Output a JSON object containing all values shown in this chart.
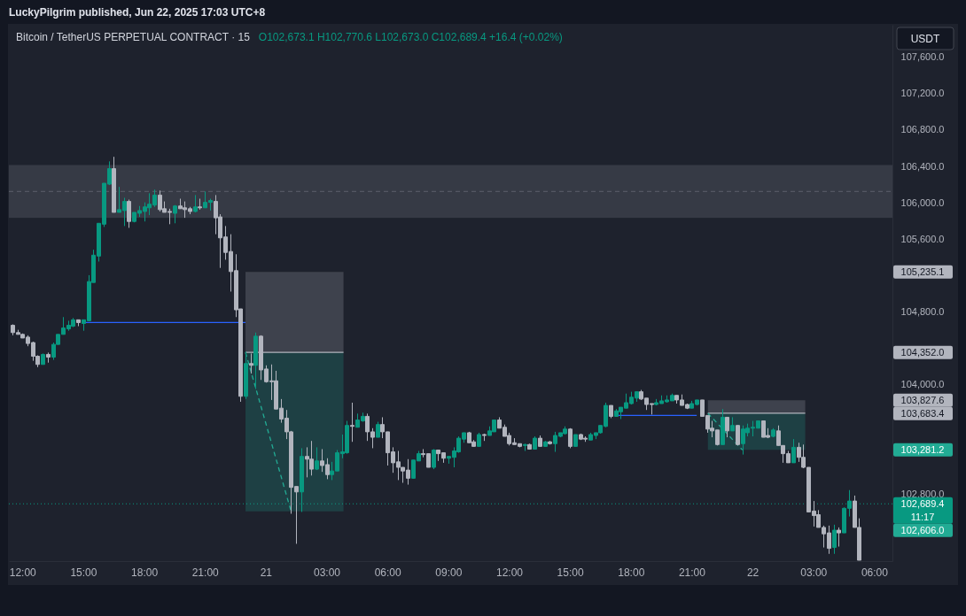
{
  "chart_data": {
    "type": "candlestick",
    "title": "Bitcoin / TetherUS PERPETUAL CONTRACT · 15",
    "subtitle": "O102,673.1 H102,770.6 L102,673.0 C102,689.4 +16.4 (+0.02%)",
    "ylabel": "USDT",
    "annotations": [
      "LuckyPilgrim published, Jun 22, 2025 17:03 UTC+8",
      "11:17",
      "105,235.1",
      "104,352.0",
      "103,827.6",
      "103,683.4",
      "103,281.2",
      "102,606.0"
    ],
    "xlim": [
      "2025-06-20T11:20",
      "2025-06-22T06:54"
    ],
    "ylim": [
      102060,
      107950
    ],
    "xticks": [
      {
        "value": "2025-06-20T12:00",
        "label": "12:00"
      },
      {
        "value": "2025-06-20T15:00",
        "label": "15:00"
      },
      {
        "value": "2025-06-20T18:00",
        "label": "18:00"
      },
      {
        "value": "2025-06-20T21:00",
        "label": "21:00"
      },
      {
        "value": "2025-06-21T00:00",
        "label": "21"
      },
      {
        "value": "2025-06-21T03:00",
        "label": "03:00"
      },
      {
        "value": "2025-06-21T06:00",
        "label": "06:00"
      },
      {
        "value": "2025-06-21T09:00",
        "label": "09:00"
      },
      {
        "value": "2025-06-21T12:00",
        "label": "12:00"
      },
      {
        "value": "2025-06-21T15:00",
        "label": "15:00"
      },
      {
        "value": "2025-06-21T18:00",
        "label": "18:00"
      },
      {
        "value": "2025-06-21T21:00",
        "label": "21:00"
      },
      {
        "value": "2025-06-22T00:00",
        "label": "22"
      },
      {
        "value": "2025-06-22T03:00",
        "label": "03:00"
      },
      {
        "value": "2025-06-22T06:00",
        "label": "06:00"
      }
    ],
    "yticks": [
      {
        "value": 102800,
        "label": "102,800.0"
      },
      {
        "value": 104000,
        "label": "104,000.0"
      },
      {
        "value": 104800,
        "label": "104,800.0"
      },
      {
        "value": 105600,
        "label": "105,600.0"
      },
      {
        "value": 106000,
        "label": "106,000.0"
      },
      {
        "value": 106400,
        "label": "106,400.0"
      },
      {
        "value": 106800,
        "label": "106,800.0"
      },
      {
        "value": 107200,
        "label": "107,200.0"
      },
      {
        "value": 107600,
        "label": "107,600.0"
      }
    ],
    "bands": [
      {
        "axis": "y",
        "from": 105830,
        "to": 106410,
        "color": "#363a45"
      }
    ],
    "ref_lines": [
      {
        "axis": "y",
        "value": 106120,
        "color": "#5d606b",
        "line_style": "dashed"
      },
      {
        "axis": "y",
        "value": 102689.4,
        "label": "102,689.4",
        "color": "#089981",
        "line_style": "dotted"
      }
    ],
    "x": [
      "2025-06-20T11:30",
      "2025-06-20T11:45",
      "2025-06-20T12:00",
      "2025-06-20T12:15",
      "2025-06-20T12:30",
      "2025-06-20T12:45",
      "2025-06-20T13:00",
      "2025-06-20T13:15",
      "2025-06-20T13:30",
      "2025-06-20T13:45",
      "2025-06-20T14:00",
      "2025-06-20T14:15",
      "2025-06-20T14:30",
      "2025-06-20T14:45",
      "2025-06-20T15:00",
      "2025-06-20T15:15",
      "2025-06-20T15:30",
      "2025-06-20T15:45",
      "2025-06-20T16:00",
      "2025-06-20T16:15",
      "2025-06-20T16:30",
      "2025-06-20T16:45",
      "2025-06-20T17:00",
      "2025-06-20T17:15",
      "2025-06-20T17:30",
      "2025-06-20T17:45",
      "2025-06-20T18:00",
      "2025-06-20T18:15",
      "2025-06-20T18:30",
      "2025-06-20T18:45",
      "2025-06-20T19:00",
      "2025-06-20T19:15",
      "2025-06-20T19:30",
      "2025-06-20T19:45",
      "2025-06-20T20:00",
      "2025-06-20T20:15",
      "2025-06-20T20:30",
      "2025-06-20T20:45",
      "2025-06-20T21:00",
      "2025-06-20T21:15",
      "2025-06-20T21:30",
      "2025-06-20T21:45",
      "2025-06-20T22:00",
      "2025-06-20T22:15",
      "2025-06-20T22:30",
      "2025-06-20T22:45",
      "2025-06-20T23:00",
      "2025-06-20T23:15",
      "2025-06-20T23:30",
      "2025-06-20T23:45",
      "2025-06-21T00:00",
      "2025-06-21T00:15",
      "2025-06-21T00:30",
      "2025-06-21T00:45",
      "2025-06-21T01:00",
      "2025-06-21T01:15",
      "2025-06-21T01:30",
      "2025-06-21T01:45",
      "2025-06-21T02:00",
      "2025-06-21T02:15",
      "2025-06-21T02:30",
      "2025-06-21T02:45",
      "2025-06-21T03:00",
      "2025-06-21T03:15",
      "2025-06-21T03:30",
      "2025-06-21T03:45",
      "2025-06-21T04:00",
      "2025-06-21T04:15",
      "2025-06-21T04:30",
      "2025-06-21T04:45",
      "2025-06-21T05:00",
      "2025-06-21T05:15",
      "2025-06-21T05:30",
      "2025-06-21T05:45",
      "2025-06-21T06:00",
      "2025-06-21T06:15",
      "2025-06-21T06:30",
      "2025-06-21T06:45",
      "2025-06-21T07:00",
      "2025-06-21T07:15",
      "2025-06-21T07:30",
      "2025-06-21T07:45",
      "2025-06-21T08:00",
      "2025-06-21T08:15",
      "2025-06-21T08:30",
      "2025-06-21T08:45",
      "2025-06-21T09:00",
      "2025-06-21T09:15",
      "2025-06-21T09:30",
      "2025-06-21T09:45",
      "2025-06-21T10:00",
      "2025-06-21T10:15",
      "2025-06-21T10:30",
      "2025-06-21T10:45",
      "2025-06-21T11:00",
      "2025-06-21T11:15",
      "2025-06-21T11:30",
      "2025-06-21T11:45",
      "2025-06-21T12:00",
      "2025-06-21T12:15",
      "2025-06-21T12:30",
      "2025-06-21T12:45",
      "2025-06-21T13:00",
      "2025-06-21T13:15",
      "2025-06-21T13:30",
      "2025-06-21T13:45",
      "2025-06-21T14:00",
      "2025-06-21T14:15",
      "2025-06-21T14:30",
      "2025-06-21T14:45",
      "2025-06-21T15:00",
      "2025-06-21T15:15",
      "2025-06-21T15:30",
      "2025-06-21T15:45",
      "2025-06-21T16:00",
      "2025-06-21T16:15",
      "2025-06-21T16:30",
      "2025-06-21T16:45",
      "2025-06-21T17:00",
      "2025-06-21T17:15",
      "2025-06-21T17:30",
      "2025-06-21T17:45",
      "2025-06-21T18:00",
      "2025-06-21T18:15",
      "2025-06-21T18:30",
      "2025-06-21T18:45",
      "2025-06-21T19:00",
      "2025-06-21T19:15",
      "2025-06-21T19:30",
      "2025-06-21T19:45",
      "2025-06-21T20:00",
      "2025-06-21T20:15",
      "2025-06-21T20:30",
      "2025-06-21T20:45",
      "2025-06-21T21:00",
      "2025-06-21T21:15",
      "2025-06-21T21:30",
      "2025-06-21T21:45",
      "2025-06-21T22:00",
      "2025-06-21T22:15",
      "2025-06-21T22:30",
      "2025-06-21T22:45",
      "2025-06-21T23:00",
      "2025-06-21T23:15",
      "2025-06-21T23:30",
      "2025-06-21T23:45",
      "2025-06-22T00:00",
      "2025-06-22T00:15",
      "2025-06-22T00:30",
      "2025-06-22T00:45",
      "2025-06-22T01:00",
      "2025-06-22T01:15",
      "2025-06-22T01:30",
      "2025-06-22T01:45",
      "2025-06-22T02:00",
      "2025-06-22T02:15",
      "2025-06-22T02:30",
      "2025-06-22T02:45",
      "2025-06-22T03:00",
      "2025-06-22T03:15",
      "2025-06-22T03:30",
      "2025-06-22T03:45",
      "2025-06-22T04:00",
      "2025-06-22T04:15",
      "2025-06-22T04:30",
      "2025-06-22T04:45",
      "2025-06-22T05:00",
      "2025-06-22T05:15"
    ],
    "ohlc": [
      [
        104650,
        104660,
        104540,
        104570
      ],
      [
        104570,
        104600,
        104550,
        104550
      ],
      [
        104550,
        104560,
        104510,
        104510
      ],
      [
        104520,
        104540,
        104420,
        104450
      ],
      [
        104460,
        104470,
        104260,
        104310
      ],
      [
        104310,
        104320,
        104190,
        104220
      ],
      [
        104220,
        104340,
        104220,
        104330
      ],
      [
        104330,
        104350,
        104240,
        104300
      ],
      [
        104300,
        104460,
        104270,
        104440
      ],
      [
        104440,
        104550,
        104440,
        104550
      ],
      [
        104550,
        104740,
        104550,
        104620
      ],
      [
        104610,
        104700,
        104590,
        104650
      ],
      [
        104640,
        104730,
        104630,
        104710
      ],
      [
        104710,
        104710,
        104640,
        104680
      ],
      [
        104670,
        104710,
        104590,
        104710
      ],
      [
        104700,
        105200,
        104700,
        105130
      ],
      [
        105120,
        105480,
        105120,
        105420
      ],
      [
        105410,
        105770,
        105350,
        105770
      ],
      [
        105760,
        106210,
        105730,
        106210
      ],
      [
        106200,
        106450,
        106190,
        106370
      ],
      [
        106370,
        106500,
        105890,
        105890
      ],
      [
        105890,
        106170,
        105890,
        105920
      ],
      [
        105910,
        106050,
        105740,
        106010
      ],
      [
        106010,
        106030,
        105720,
        105790
      ],
      [
        105790,
        105890,
        105780,
        105890
      ],
      [
        105880,
        105960,
        105840,
        105910
      ],
      [
        105900,
        106000,
        105790,
        105950
      ],
      [
        105940,
        106100,
        105860,
        105980
      ],
      [
        105970,
        106140,
        105950,
        106080
      ],
      [
        106080,
        106130,
        105900,
        105920
      ],
      [
        105930,
        106010,
        105890,
        105890
      ],
      [
        105900,
        105930,
        105760,
        105890
      ],
      [
        105880,
        105970,
        105770,
        105960
      ],
      [
        105960,
        106040,
        105930,
        105930
      ],
      [
        105940,
        106010,
        105830,
        105920
      ],
      [
        105930,
        105950,
        105870,
        105900
      ],
      [
        105900,
        106080,
        105890,
        105950
      ],
      [
        105950,
        106040,
        105920,
        105940
      ],
      [
        105940,
        106120,
        105940,
        106000
      ],
      [
        106000,
        106040,
        105910,
        106020
      ],
      [
        106010,
        106080,
        105650,
        105830
      ],
      [
        105840,
        105870,
        105280,
        105610
      ],
      [
        105620,
        105740,
        105370,
        105450
      ],
      [
        105460,
        105650,
        105020,
        105240
      ],
      [
        105250,
        105430,
        104740,
        104820
      ],
      [
        104830,
        104830,
        103810,
        103870
      ],
      [
        103870,
        104360,
        103840,
        104230
      ],
      [
        104230,
        104340,
        104120,
        104210
      ],
      [
        104210,
        104570,
        103950,
        104530
      ],
      [
        104530,
        104540,
        104050,
        104160
      ],
      [
        104170,
        104210,
        104020,
        104030
      ],
      [
        104040,
        104220,
        103830,
        104030
      ],
      [
        104040,
        104150,
        103730,
        103730
      ],
      [
        103740,
        103840,
        103580,
        103620
      ],
      [
        103630,
        103720,
        103400,
        103480
      ],
      [
        103480,
        103490,
        102580,
        102870
      ],
      [
        102880,
        102880,
        102250,
        102820
      ],
      [
        102820,
        103300,
        102600,
        103210
      ],
      [
        103210,
        103310,
        102980,
        103180
      ],
      [
        103180,
        103380,
        103000,
        103070
      ],
      [
        103070,
        103310,
        103060,
        103160
      ],
      [
        103160,
        103290,
        103040,
        103110
      ],
      [
        103120,
        103190,
        102960,
        103010
      ],
      [
        103010,
        103150,
        102950,
        103050
      ],
      [
        103050,
        103280,
        103050,
        103250
      ],
      [
        103240,
        103450,
        103190,
        103260
      ],
      [
        103250,
        103600,
        103240,
        103550
      ],
      [
        103550,
        103800,
        103370,
        103540
      ],
      [
        103530,
        103680,
        103530,
        103610
      ],
      [
        103600,
        103690,
        103590,
        103650
      ],
      [
        103650,
        103680,
        103380,
        103480
      ],
      [
        103480,
        103520,
        103300,
        103420
      ],
      [
        103420,
        103590,
        103420,
        103560
      ],
      [
        103560,
        103640,
        103410,
        103480
      ],
      [
        103480,
        103480,
        103110,
        103250
      ],
      [
        103260,
        103310,
        103030,
        103140
      ],
      [
        103150,
        103270,
        102950,
        103090
      ],
      [
        103090,
        103090,
        102920,
        103050
      ],
      [
        103060,
        103180,
        102900,
        102970
      ],
      [
        102970,
        103170,
        102970,
        103170
      ],
      [
        103160,
        103270,
        103160,
        103240
      ],
      [
        103240,
        103290,
        103200,
        103230
      ],
      [
        103240,
        103240,
        103090,
        103090
      ],
      [
        103090,
        103290,
        103070,
        103280
      ],
      [
        103280,
        103280,
        103160,
        103240
      ],
      [
        103250,
        103250,
        103140,
        103190
      ],
      [
        103190,
        103210,
        103130,
        103210
      ],
      [
        103200,
        103310,
        103090,
        103270
      ],
      [
        103260,
        103430,
        103250,
        103410
      ],
      [
        103400,
        103470,
        103360,
        103470
      ],
      [
        103470,
        103480,
        103360,
        103360
      ],
      [
        103370,
        103390,
        103320,
        103320
      ],
      [
        103320,
        103470,
        103320,
        103450
      ],
      [
        103450,
        103460,
        103380,
        103440
      ],
      [
        103440,
        103540,
        103440,
        103490
      ],
      [
        103480,
        103610,
        103480,
        103610
      ],
      [
        103610,
        103640,
        103520,
        103520
      ],
      [
        103530,
        103560,
        103430,
        103430
      ],
      [
        103440,
        103470,
        103330,
        103350
      ],
      [
        103360,
        103410,
        103340,
        103340
      ],
      [
        103350,
        103350,
        103310,
        103320
      ],
      [
        103330,
        103350,
        103270,
        103340
      ],
      [
        103340,
        103350,
        103290,
        103290
      ],
      [
        103290,
        103430,
        103290,
        103410
      ],
      [
        103410,
        103440,
        103320,
        103320
      ],
      [
        103320,
        103380,
        103320,
        103370
      ],
      [
        103370,
        103380,
        103340,
        103350
      ],
      [
        103350,
        103480,
        103260,
        103440
      ],
      [
        103430,
        103470,
        103420,
        103470
      ],
      [
        103460,
        103540,
        103450,
        103510
      ],
      [
        103510,
        103520,
        103300,
        103320
      ],
      [
        103320,
        103450,
        103320,
        103450
      ],
      [
        103450,
        103460,
        103390,
        103400
      ],
      [
        103410,
        103430,
        103370,
        103400
      ],
      [
        103390,
        103470,
        103390,
        103450
      ],
      [
        103440,
        103470,
        103400,
        103470
      ],
      [
        103470,
        103550,
        103460,
        103550
      ],
      [
        103540,
        103800,
        103530,
        103770
      ],
      [
        103770,
        103770,
        103630,
        103650
      ],
      [
        103650,
        103730,
        103650,
        103710
      ],
      [
        103700,
        103750,
        103620,
        103750
      ],
      [
        103740,
        103900,
        103740,
        103800
      ],
      [
        103790,
        103920,
        103780,
        103860
      ],
      [
        103850,
        103920,
        103810,
        103920
      ],
      [
        103920,
        103940,
        103830,
        103840
      ],
      [
        103850,
        103850,
        103720,
        103780
      ],
      [
        103790,
        103790,
        103670,
        103780
      ],
      [
        103780,
        103840,
        103770,
        103800
      ],
      [
        103790,
        103880,
        103790,
        103820
      ],
      [
        103810,
        103880,
        103800,
        103830
      ],
      [
        103820,
        103900,
        103820,
        103880
      ],
      [
        103880,
        103880,
        103790,
        103830
      ],
      [
        103830,
        103890,
        103770,
        103770
      ],
      [
        103780,
        103790,
        103730,
        103740
      ],
      [
        103740,
        103820,
        103740,
        103790
      ],
      [
        103780,
        103830,
        103770,
        103830
      ],
      [
        103830,
        103830,
        103650,
        103650
      ],
      [
        103660,
        103660,
        103470,
        103510
      ],
      [
        103520,
        103600,
        103420,
        103490
      ],
      [
        103500,
        103500,
        103330,
        103340
      ],
      [
        103340,
        103730,
        103340,
        103640
      ],
      [
        103640,
        103640,
        103420,
        103490
      ],
      [
        103490,
        103640,
        103490,
        103550
      ],
      [
        103550,
        103550,
        103330,
        103340
      ],
      [
        103350,
        103550,
        103230,
        103510
      ],
      [
        103470,
        103570,
        103430,
        103520
      ],
      [
        103520,
        103600,
        103430,
        103530
      ],
      [
        103520,
        103600,
        103520,
        103600
      ],
      [
        103600,
        103600,
        103420,
        103420
      ],
      [
        103440,
        103520,
        103410,
        103420
      ],
      [
        103430,
        103520,
        103420,
        103500
      ],
      [
        103490,
        103550,
        103330,
        103330
      ],
      [
        103330,
        103330,
        103140,
        103240
      ],
      [
        103240,
        103270,
        103140,
        103140
      ],
      [
        103140,
        103400,
        103140,
        103310
      ],
      [
        103310,
        103360,
        103150,
        103200
      ],
      [
        103200,
        103340,
        103080,
        103090
      ],
      [
        103090,
        103090,
        102600,
        102600
      ],
      [
        102610,
        102720,
        102440,
        102560
      ],
      [
        102570,
        102620,
        102430,
        102430
      ],
      [
        102430,
        102450,
        102210,
        102360
      ],
      [
        102370,
        102450,
        102140,
        102200
      ],
      [
        102210,
        102460,
        102140,
        102400
      ],
      [
        102400,
        102430,
        102220,
        102370
      ],
      [
        102370,
        102650,
        102370,
        102640
      ],
      [
        102640,
        102840,
        102550,
        102720
      ],
      [
        102720,
        102780,
        102430,
        102430
      ],
      [
        102430,
        102530,
        102070,
        102070
      ]
    ],
    "colors": [
      "#b2b5be",
      "#b2b5be",
      "#b2b5be",
      "#b2b5be",
      "#b2b5be",
      "#b2b5be",
      "#089981",
      "#b2b5be",
      "#089981",
      "#089981",
      "#089981",
      "#089981",
      "#089981",
      "#b2b5be",
      "#089981",
      "#089981",
      "#089981",
      "#089981",
      "#089981",
      "#089981",
      "#b2b5be",
      "#089981",
      "#089981",
      "#b2b5be",
      "#089981",
      "#089981",
      "#089981",
      "#089981",
      "#089981",
      "#b2b5be",
      "#b2b5be",
      "#b2b5be",
      "#089981",
      "#b2b5be",
      "#b2b5be",
      "#b2b5be",
      "#089981",
      "#b2b5be",
      "#089981",
      "#089981",
      "#b2b5be",
      "#b2b5be",
      "#b2b5be",
      "#b2b5be",
      "#b2b5be",
      "#b2b5be",
      "#089981",
      "#b2b5be",
      "#089981",
      "#b2b5be",
      "#b2b5be",
      "#b2b5be",
      "#b2b5be",
      "#b2b5be",
      "#b2b5be",
      "#b2b5be",
      "#b2b5be",
      "#089981",
      "#b2b5be",
      "#b2b5be",
      "#089981",
      "#b2b5be",
      "#b2b5be",
      "#089981",
      "#089981",
      "#089981",
      "#089981",
      "#b2b5be",
      "#089981",
      "#089981",
      "#b2b5be",
      "#b2b5be",
      "#089981",
      "#b2b5be",
      "#b2b5be",
      "#b2b5be",
      "#b2b5be",
      "#b2b5be",
      "#b2b5be",
      "#089981",
      "#089981",
      "#b2b5be",
      "#b2b5be",
      "#089981",
      "#b2b5be",
      "#b2b5be",
      "#089981",
      "#089981",
      "#089981",
      "#089981",
      "#b2b5be",
      "#b2b5be",
      "#089981",
      "#b2b5be",
      "#089981",
      "#089981",
      "#b2b5be",
      "#b2b5be",
      "#b2b5be",
      "#b2b5be",
      "#b2b5be",
      "#089981",
      "#b2b5be",
      "#089981",
      "#b2b5be",
      "#089981",
      "#b2b5be",
      "#089981",
      "#089981",
      "#089981",
      "#b2b5be",
      "#089981",
      "#b2b5be",
      "#b2b5be",
      "#089981",
      "#089981",
      "#089981",
      "#089981",
      "#b2b5be",
      "#089981",
      "#089981",
      "#089981",
      "#089981",
      "#089981",
      "#b2b5be",
      "#b2b5be",
      "#b2b5be",
      "#089981",
      "#089981",
      "#089981",
      "#089981",
      "#b2b5be",
      "#b2b5be",
      "#b2b5be",
      "#089981",
      "#089981",
      "#b2b5be",
      "#b2b5be",
      "#b2b5be",
      "#b2b5be",
      "#089981",
      "#b2b5be",
      "#089981",
      "#b2b5be",
      "#089981",
      "#089981",
      "#089981",
      "#089981",
      "#b2b5be",
      "#b2b5be",
      "#089981",
      "#b2b5be",
      "#b2b5be",
      "#b2b5be",
      "#089981",
      "#b2b5be",
      "#b2b5be",
      "#b2b5be",
      "#b2b5be",
      "#b2b5be",
      "#b2b5be",
      "#b2b5be",
      "#089981",
      "#b2b5be",
      "#089981",
      "#089981",
      "#b2b5be",
      "#b2b5be"
    ],
    "series": [
      {
        "type": "line",
        "x": [
          "2025-06-20T15:00",
          "2025-06-20T23:00"
        ],
        "values": [
          104680,
          104680
        ],
        "color": "#2962ff"
      },
      {
        "type": "line",
        "x": [
          "2025-06-21T17:15",
          "2025-06-21T21:15"
        ],
        "values": [
          103660,
          103660
        ],
        "color": "#2962ff"
      },
      {
        "type": "line",
        "x": [
          "2025-06-20T23:00",
          "2025-06-21T03:50"
        ],
        "values": [
          104352.0,
          104352.0
        ],
        "lower": [
          104352.0,
          104352.0
        ],
        "upper": [
          105235.1,
          105235.1
        ],
        "color": "#b2b5be"
      },
      {
        "type": "line",
        "x": [
          "2025-06-20T23:00",
          "2025-06-21T01:15",
          "2025-06-21T03:50"
        ],
        "values": [
          104352.0,
          102606.0,
          null
        ],
        "lower": [
          102606.0,
          102606.0,
          102606.0
        ],
        "upper": [
          104352.0,
          104352.0,
          104352.0
        ],
        "color": "#22ab94",
        "line_style": "dashed"
      },
      {
        "type": "line",
        "x": [
          "2025-06-21T21:48",
          "2025-06-22T02:36"
        ],
        "values": [
          103683.4,
          103683.4
        ],
        "lower": [
          103683.4,
          103683.4
        ],
        "upper": [
          103827.6,
          103827.6
        ],
        "color": "#b2b5be"
      },
      {
        "type": "line",
        "x": [
          "2025-06-21T21:48",
          "2025-06-21T23:30",
          "2025-06-22T02:36"
        ],
        "values": [
          103683.4,
          103281.2,
          null
        ],
        "lower": [
          103281.2,
          103281.2,
          103281.2
        ],
        "upper": [
          103683.4,
          103683.4,
          103683.4
        ],
        "color": "#22ab94",
        "line_style": "dashed"
      }
    ]
  }
}
